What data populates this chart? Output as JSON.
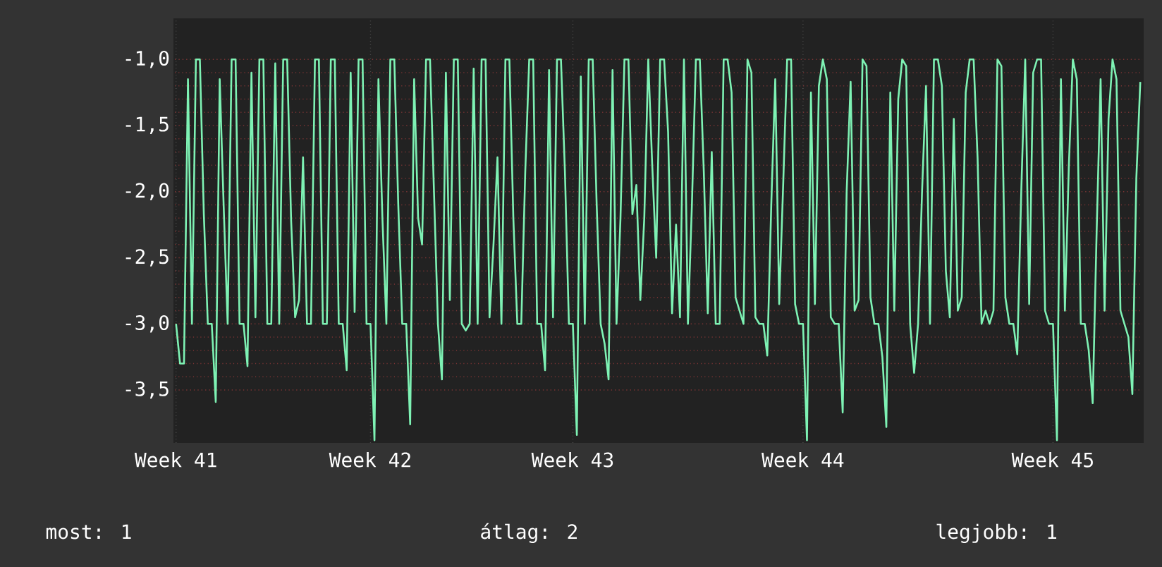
{
  "chart_data": {
    "type": "line",
    "categories": [
      "Week 41",
      null,
      null,
      null,
      null,
      null,
      null,
      null,
      null,
      null,
      null,
      null,
      null,
      null,
      null,
      null,
      null,
      null,
      null,
      null,
      null,
      null,
      null,
      null,
      null,
      null,
      null,
      null,
      null,
      null,
      null,
      null,
      null,
      null,
      null,
      null,
      null,
      null,
      null,
      null,
      null,
      null,
      null,
      null,
      null,
      null,
      null,
      null,
      null,
      "Week 42",
      null,
      null,
      null,
      null,
      null,
      null,
      null,
      null,
      null,
      null,
      null,
      null,
      null,
      null,
      null,
      null,
      null,
      null,
      null,
      null,
      null,
      null,
      null,
      null,
      null,
      null,
      null,
      null,
      null,
      null,
      null,
      null,
      null,
      null,
      null,
      null,
      null,
      null,
      null,
      null,
      null,
      null,
      null,
      null,
      null,
      null,
      null,
      null,
      null,
      null,
      "Week 43",
      null,
      null,
      null,
      null,
      null,
      null,
      null,
      null,
      null,
      null,
      null,
      null,
      null,
      null,
      null,
      null,
      null,
      null,
      null,
      null,
      null,
      null,
      null,
      null,
      null,
      null,
      null,
      null,
      null,
      null,
      null,
      null,
      null,
      null,
      null,
      null,
      null,
      null,
      null,
      null,
      null,
      null,
      null,
      null,
      null,
      null,
      null,
      null,
      null,
      null,
      null,
      null,
      null,
      null,
      null,
      null,
      null,
      "Week 44",
      null,
      null,
      null,
      null,
      null,
      null,
      null,
      null,
      null,
      null,
      null,
      null,
      null,
      null,
      null,
      null,
      null,
      null,
      null,
      null,
      null,
      null,
      null,
      null,
      null,
      null,
      null,
      null,
      null,
      null,
      null,
      null,
      null,
      null,
      null,
      null,
      null,
      null,
      null,
      null,
      null,
      null,
      null,
      null,
      null,
      null,
      null,
      null,
      null,
      null,
      null,
      null,
      null,
      null,
      null,
      null,
      null,
      null,
      null,
      null,
      null,
      null,
      "Week 45",
      null,
      null,
      null,
      null,
      null,
      null,
      null,
      null,
      null,
      null,
      null,
      null,
      null,
      null,
      null,
      null,
      null,
      null,
      null,
      null,
      null,
      null
    ],
    "values": [
      -3.0,
      -3.3,
      -3.3,
      -1.15,
      -3.0,
      -1.0,
      -1.0,
      -2.17,
      -3.0,
      -3.0,
      -3.59,
      -1.15,
      -2.11,
      -3.0,
      -1.0,
      -1.0,
      -3.0,
      -3.0,
      -3.32,
      -1.1,
      -2.95,
      -1.0,
      -1.0,
      -3.0,
      -3.0,
      -1.03,
      -3.0,
      -1.0,
      -1.0,
      -2.22,
      -2.95,
      -2.82,
      -1.74,
      -3.0,
      -3.0,
      -1.0,
      -1.0,
      -3.0,
      -3.0,
      -1.0,
      -1.0,
      -3.0,
      -3.0,
      -3.35,
      -1.1,
      -2.91,
      -1.0,
      -1.0,
      -3.0,
      -3.0,
      -3.88,
      -1.15,
      -2.2,
      -3.0,
      -1.0,
      -1.0,
      -2.1,
      -3.0,
      -3.0,
      -3.76,
      -1.15,
      -2.2,
      -2.4,
      -1.0,
      -1.0,
      -2.0,
      -3.0,
      -3.42,
      -1.1,
      -2.82,
      -1.0,
      -1.0,
      -3.0,
      -3.05,
      -3.0,
      -1.07,
      -3.0,
      -1.0,
      -1.0,
      -2.95,
      -2.4,
      -1.74,
      -3.0,
      -1.0,
      -1.0,
      -2.2,
      -3.0,
      -3.0,
      -1.85,
      -1.0,
      -1.0,
      -3.0,
      -3.0,
      -3.35,
      -1.08,
      -2.95,
      -1.0,
      -1.0,
      -1.85,
      -3.0,
      -3.0,
      -3.84,
      -1.13,
      -3.0,
      -1.0,
      -1.0,
      -2.1,
      -3.0,
      -3.15,
      -3.42,
      -1.08,
      -3.0,
      -2.2,
      -1.0,
      -1.0,
      -2.17,
      -1.95,
      -2.82,
      -2.2,
      -1.0,
      -1.8,
      -2.5,
      -1.0,
      -1.0,
      -1.55,
      -2.92,
      -2.25,
      -2.95,
      -1.0,
      -3.0,
      -2.1,
      -1.0,
      -1.0,
      -1.85,
      -2.92,
      -1.7,
      -3.0,
      -3.0,
      -1.0,
      -1.0,
      -1.25,
      -2.8,
      -2.9,
      -3.0,
      -1.0,
      -1.1,
      -2.95,
      -3.0,
      -3.0,
      -3.24,
      -2.1,
      -1.15,
      -2.85,
      -1.95,
      -1.0,
      -1.0,
      -2.85,
      -3.0,
      -3.0,
      -3.88,
      -1.25,
      -2.85,
      -1.2,
      -1.0,
      -1.15,
      -2.95,
      -3.0,
      -3.0,
      -3.67,
      -2.0,
      -1.17,
      -2.9,
      -2.82,
      -1.0,
      -1.05,
      -2.8,
      -3.0,
      -3.0,
      -3.25,
      -3.78,
      -1.25,
      -2.9,
      -1.3,
      -1.0,
      -1.05,
      -3.0,
      -3.37,
      -3.0,
      -2.0,
      -1.2,
      -3.0,
      -1.0,
      -1.0,
      -1.2,
      -2.6,
      -2.95,
      -1.45,
      -2.9,
      -2.8,
      -1.25,
      -1.0,
      -1.0,
      -1.75,
      -3.0,
      -2.9,
      -3.0,
      -2.9,
      -1.0,
      -1.05,
      -2.8,
      -3.0,
      -3.0,
      -3.23,
      -2.0,
      -1.0,
      -2.85,
      -1.1,
      -1.0,
      -1.0,
      -2.9,
      -3.0,
      -3.0,
      -3.88,
      -1.15,
      -2.9,
      -1.8,
      -1.0,
      -1.15,
      -3.0,
      -3.0,
      -3.2,
      -3.6,
      -2.3,
      -1.15,
      -2.9,
      -1.45,
      -1.0,
      -1.15,
      -2.9,
      -3.0,
      -3.1,
      -3.53,
      -1.9,
      -1.17
    ],
    "color": "#7ef2b4",
    "ylim": [
      -3.9,
      -0.7
    ],
    "yticks": [
      {
        "value": -3.5,
        "label": "-3,5"
      },
      {
        "value": -3.0,
        "label": "-3,0"
      },
      {
        "value": -2.5,
        "label": "-2,5"
      },
      {
        "value": -2.0,
        "label": "-2,0"
      },
      {
        "value": -1.5,
        "label": "-1,5"
      },
      {
        "value": -1.0,
        "label": "-1,0"
      }
    ],
    "grid": true,
    "annotations": [
      "most: 1",
      "átlag: 2",
      "legjobb: 1"
    ]
  }
}
